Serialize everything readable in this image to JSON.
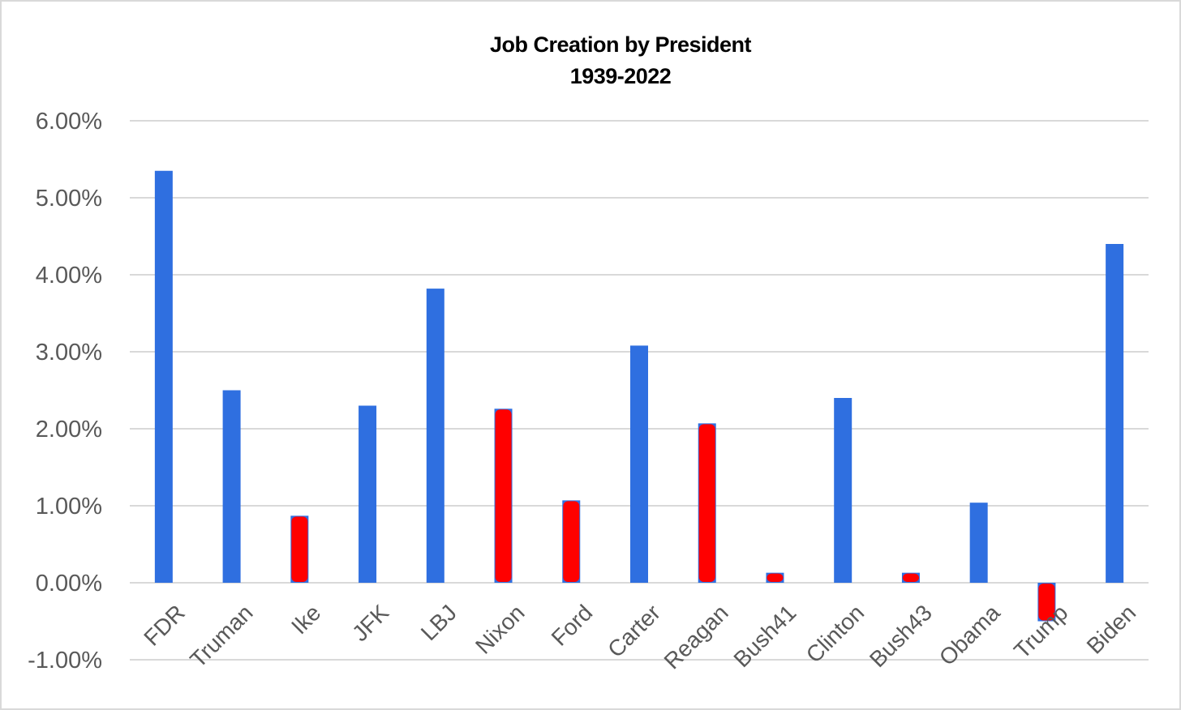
{
  "chart_data": {
    "type": "bar",
    "title": "Job Creation by President",
    "subtitle": "1939-2022",
    "xlabel": "",
    "ylabel": "",
    "ylim": [
      -1,
      6
    ],
    "yticks": [
      6,
      5,
      4,
      3,
      2,
      1,
      0,
      -1
    ],
    "ytick_labels": [
      "6.00%",
      "5.00%",
      "4.00%",
      "3.00%",
      "2.00%",
      "1.00%",
      "0.00%",
      "-1.00%"
    ],
    "grid": true,
    "legend": "none",
    "categories": [
      "FDR",
      "Truman",
      "Ike",
      "JFK",
      "LBJ",
      "Nixon",
      "Ford",
      "Carter",
      "Reagan",
      "Bush41",
      "Clinton",
      "Bush43",
      "Obama",
      "Trump",
      "Biden"
    ],
    "values": [
      5.35,
      2.5,
      0.87,
      2.3,
      3.82,
      2.26,
      1.07,
      3.08,
      2.07,
      0.13,
      2.4,
      0.13,
      1.04,
      -0.5,
      4.4
    ],
    "highlighted": [
      false,
      false,
      true,
      false,
      false,
      true,
      true,
      false,
      true,
      true,
      false,
      true,
      false,
      true,
      false
    ],
    "colors": {
      "bar": "#2f6fe0",
      "highlight": "#ff0000",
      "grid": "#d9d9d9",
      "tick_text": "#595959"
    }
  }
}
